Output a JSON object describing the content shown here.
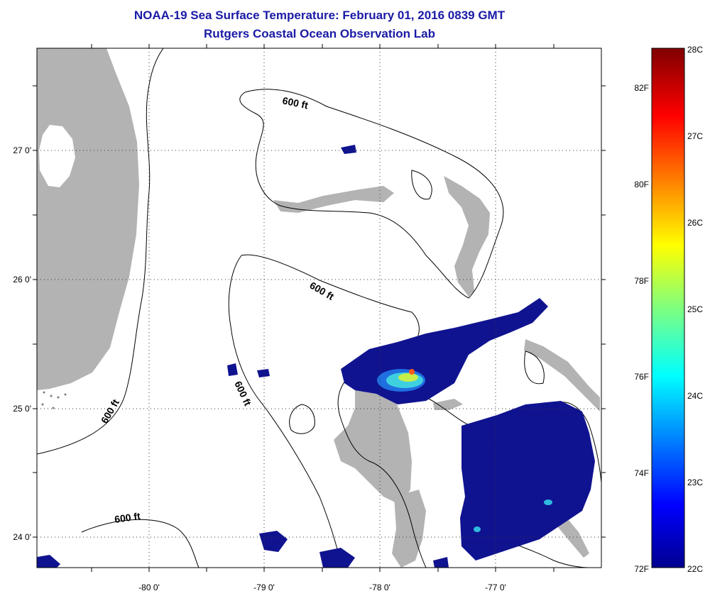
{
  "title": {
    "line1": "NOAA-19 Sea Surface Temperature:  February 01, 2016 0839 GMT",
    "line2": "Rutgers Coastal Ocean Observation Lab"
  },
  "map": {
    "lon_ticks": [
      "-80 0'",
      "-79 0'",
      "-78 0'",
      "-77 0'"
    ],
    "lat_ticks": [
      "27 0'",
      "26 0'",
      "25 0'",
      "24 0'"
    ],
    "contour_label": "600 ft",
    "colors": {
      "land": "#b3b3b3",
      "water": "#ffffff",
      "sst_cold": "#10138f"
    }
  },
  "colorbar": {
    "celsius": [
      "28C",
      "27C",
      "26C",
      "25C",
      "24C",
      "23C",
      "22C"
    ],
    "fahrenheit": [
      "82F",
      "80F",
      "78F",
      "76F",
      "74F",
      "72F"
    ],
    "colormap": "jet"
  }
}
